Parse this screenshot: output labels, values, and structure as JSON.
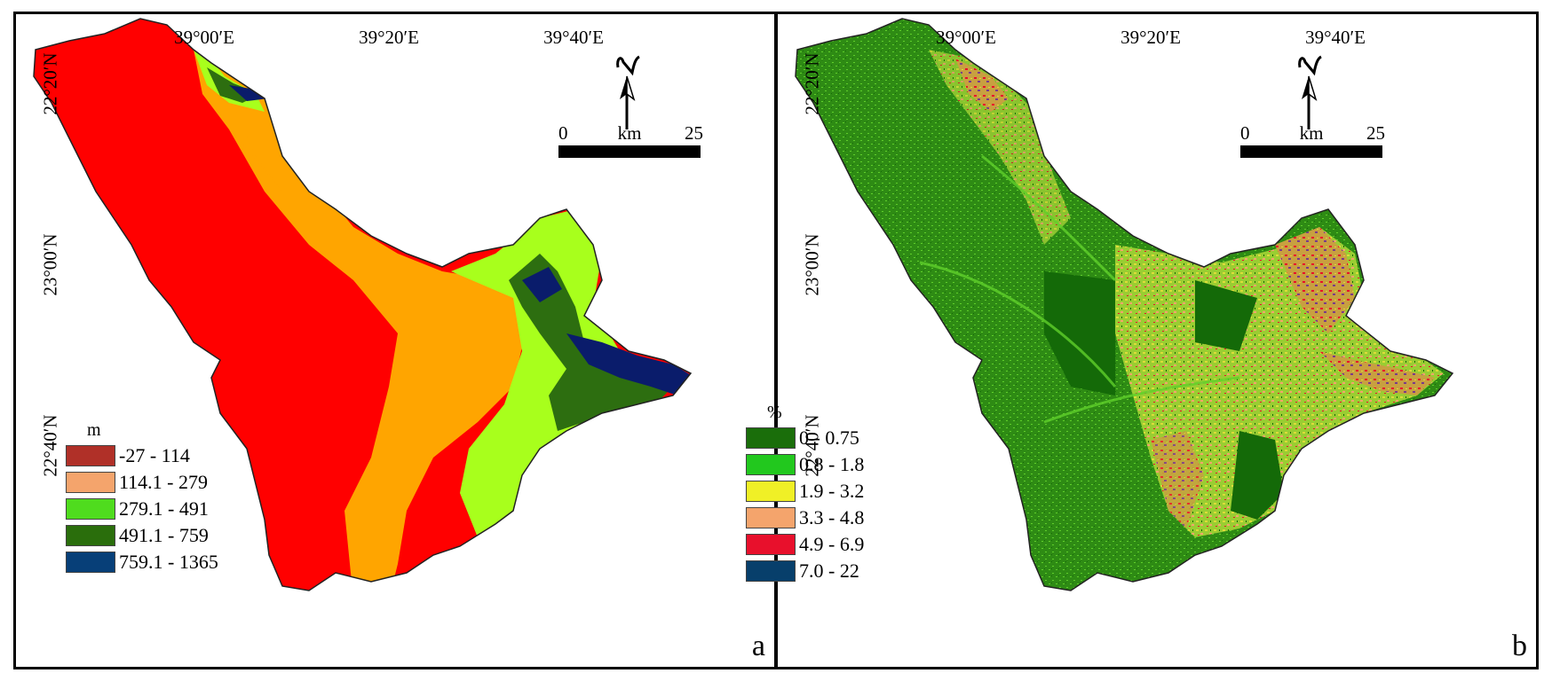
{
  "panels": {
    "a": {
      "letter": "a",
      "lon_ticks": [
        "39°00′E",
        "39°20′E",
        "39°40′E"
      ],
      "lat_ticks": [
        "22°20′N",
        "23°00′N",
        "22°40′N"
      ],
      "legend": {
        "title": "m",
        "classes": [
          {
            "label": "-27 - 114",
            "color": "#b03028"
          },
          {
            "label": "114.1 - 279",
            "color": "#f4a46c"
          },
          {
            "label": "279.1 - 491",
            "color": "#4fdc1e"
          },
          {
            "label": "491.1 - 759",
            "color": "#2a6e0c"
          },
          {
            "label": "759.1 - 1365",
            "color": "#073f78"
          }
        ]
      },
      "scale": {
        "start": "0",
        "unit": "km",
        "end": "25"
      },
      "colors": {
        "red": "#ff0000",
        "orange": "#ffa500",
        "lime": "#a8ff1c",
        "darkgreen": "#2d6e10",
        "navy": "#0a1c6b"
      }
    },
    "b": {
      "letter": "b",
      "lon_ticks": [
        "39°00′E",
        "39°20′E",
        "39°40′E"
      ],
      "lat_ticks": [
        "22°20′N",
        "23°00′N",
        "22°40′N"
      ],
      "legend": {
        "title": "%",
        "classes": [
          {
            "label": "0 - 0.75",
            "color": "#1a6e0a"
          },
          {
            "label": "0.8 - 1.8",
            "color": "#22c81e"
          },
          {
            "label": "1.9 - 3.2",
            "color": "#f0f026"
          },
          {
            "label": "3.3 - 4.8",
            "color": "#f4a46c"
          },
          {
            "label": "4.9 - 6.9",
            "color": "#e8102c"
          },
          {
            "label": "7.0 - 22",
            "color": "#073f6b"
          }
        ]
      },
      "scale": {
        "start": "0",
        "unit": "km",
        "end": "25"
      },
      "colors": {
        "base": "#2e8b14",
        "light": "#5fcf2a",
        "yellow": "#dcdc3a",
        "dark": "#146a08"
      }
    }
  }
}
